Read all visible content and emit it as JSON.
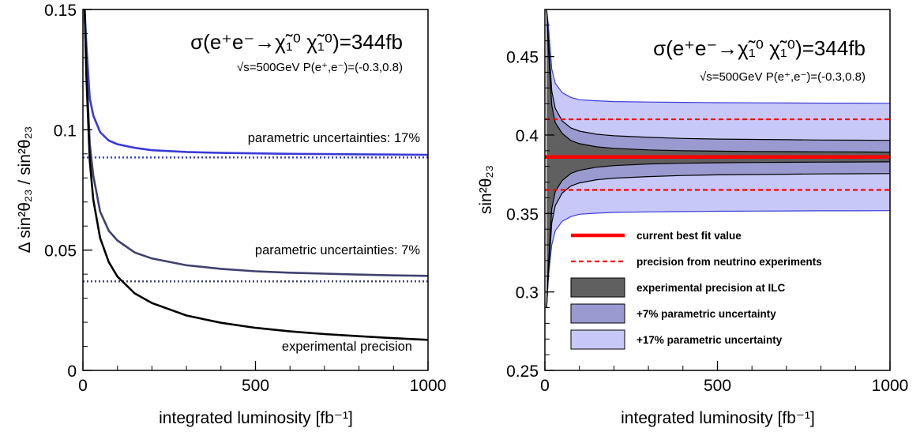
{
  "chart_data": [
    {
      "type": "line",
      "process_label": "σ(e⁺e⁻→χ̃₁⁰ χ̃₁⁰)=344fb",
      "conditions_label": "√s=500GeV   P(e⁺,e⁻)=(-0.3,0.8)",
      "xlabel": "integrated luminosity [fb⁻¹]",
      "ylabel": "Δ sin²θ₂₃ / sin²θ₂₃",
      "xlim": [
        0,
        1000
      ],
      "ylim": [
        0,
        0.15
      ],
      "x_ticks": [
        "0",
        "500",
        "1000"
      ],
      "y_ticks": [
        "0",
        "0.05",
        "0.1",
        "0.15"
      ],
      "series": [
        {
          "name": "parametric uncertainties: 17%",
          "color": "#3a3ad8",
          "x": [
            5,
            10,
            20,
            30,
            50,
            75,
            100,
            150,
            200,
            300,
            400,
            500,
            600,
            700,
            800,
            900,
            1000
          ],
          "y": [
            0.15,
            0.135,
            0.113,
            0.106,
            0.099,
            0.0955,
            0.094,
            0.0925,
            0.0915,
            0.0908,
            0.0904,
            0.0902,
            0.09,
            0.0899,
            0.0898,
            0.0897,
            0.0896
          ]
        },
        {
          "name": "parametric uncertainties: 7%",
          "color": "#404070",
          "x": [
            5,
            10,
            20,
            30,
            50,
            75,
            100,
            150,
            200,
            300,
            400,
            500,
            600,
            700,
            800,
            900,
            1000
          ],
          "y": [
            0.15,
            0.125,
            0.094,
            0.081,
            0.066,
            0.058,
            0.054,
            0.049,
            0.0465,
            0.0437,
            0.0422,
            0.0412,
            0.0406,
            0.0402,
            0.0398,
            0.0395,
            0.0393
          ]
        },
        {
          "name": "experimental precision",
          "color": "#000000",
          "x": [
            5,
            10,
            20,
            30,
            50,
            75,
            100,
            150,
            200,
            300,
            400,
            500,
            600,
            700,
            800,
            900,
            1000
          ],
          "y": [
            0.15,
            0.122,
            0.087,
            0.071,
            0.055,
            0.045,
            0.039,
            0.032,
            0.028,
            0.0228,
            0.0198,
            0.0177,
            0.0162,
            0.0151,
            0.0142,
            0.0134,
            0.0127
          ]
        }
      ],
      "reference_lines": [
        {
          "y": 0.0885,
          "color": "#3a3ad8",
          "style": "dotted"
        },
        {
          "y": 0.037,
          "color": "#404070",
          "style": "dotted"
        }
      ]
    },
    {
      "type": "area",
      "process_label": "σ(e⁺e⁻→χ̃₁⁰ χ̃₁⁰)=344fb",
      "conditions_label": "√s=500GeV   P(e⁺,e⁻)=(-0.3,0.8)",
      "xlabel": "integrated luminosity [fb⁻¹]",
      "ylabel": "sin²θ₂₃",
      "xlim": [
        0,
        1000
      ],
      "ylim": [
        0.25,
        0.48
      ],
      "x_ticks": [
        "0",
        "500",
        "1000"
      ],
      "y_ticks": [
        "0.25",
        "0.3",
        "0.35",
        "0.4",
        "0.45"
      ],
      "central_value": 0.386,
      "neutrino_precision": [
        0.365,
        0.41
      ],
      "bands": [
        {
          "name": "+17% parametric uncertainty",
          "color": "#c8c8f8",
          "x": [
            5,
            10,
            20,
            30,
            50,
            75,
            100,
            150,
            200,
            300,
            400,
            500,
            600,
            700,
            800,
            900,
            1000
          ],
          "upper": [
            0.48,
            0.47,
            0.442,
            0.433,
            0.427,
            0.424,
            0.4225,
            0.4218,
            0.4213,
            0.421,
            0.4208,
            0.4206,
            0.4205,
            0.4204,
            0.4203,
            0.4203,
            0.4202
          ],
          "lower": [
            0.29,
            0.31,
            0.33,
            0.339,
            0.345,
            0.348,
            0.3495,
            0.3502,
            0.3507,
            0.351,
            0.3512,
            0.3514,
            0.3515,
            0.3516,
            0.3517,
            0.3517,
            0.3518
          ]
        },
        {
          "name": "+7% parametric uncertainty",
          "color": "#9a9ad0",
          "x": [
            5,
            10,
            20,
            30,
            50,
            75,
            100,
            150,
            200,
            300,
            400,
            500,
            600,
            700,
            800,
            900,
            1000
          ],
          "upper": [
            0.48,
            0.462,
            0.428,
            0.417,
            0.409,
            0.4045,
            0.4025,
            0.4005,
            0.3995,
            0.3985,
            0.3978,
            0.3974,
            0.3972,
            0.397,
            0.3968,
            0.3967,
            0.3966
          ],
          "lower": [
            0.29,
            0.31,
            0.344,
            0.355,
            0.363,
            0.3675,
            0.3695,
            0.3715,
            0.3725,
            0.3735,
            0.3742,
            0.3746,
            0.3748,
            0.375,
            0.3752,
            0.3753,
            0.3754
          ]
        },
        {
          "name": "experimental precision at ILC",
          "color": "#606060",
          "x": [
            5,
            10,
            20,
            30,
            50,
            75,
            100,
            150,
            200,
            300,
            400,
            500,
            600,
            700,
            800,
            900,
            1000
          ],
          "upper": [
            0.48,
            0.455,
            0.419,
            0.408,
            0.401,
            0.3965,
            0.3945,
            0.3925,
            0.3915,
            0.3905,
            0.39,
            0.3897,
            0.3895,
            0.3894,
            0.3893,
            0.3892,
            0.3891
          ],
          "lower": [
            0.29,
            0.317,
            0.353,
            0.364,
            0.371,
            0.3755,
            0.3775,
            0.3795,
            0.3805,
            0.3815,
            0.382,
            0.3823,
            0.3825,
            0.3826,
            0.3827,
            0.3828,
            0.3829
          ]
        }
      ],
      "legend": [
        {
          "label": "current best fit value",
          "kind": "line",
          "color": "#ff0000"
        },
        {
          "label": "precision from neutrino experiments",
          "kind": "dashed",
          "color": "#ff0000"
        },
        {
          "label": "experimental precision at ILC",
          "kind": "box",
          "color": "#606060"
        },
        {
          "label": "+7% parametric uncertainty",
          "kind": "box",
          "color": "#9a9ad0"
        },
        {
          "label": "+17% parametric uncertainty",
          "kind": "box",
          "color": "#c8c8f8"
        }
      ]
    }
  ]
}
